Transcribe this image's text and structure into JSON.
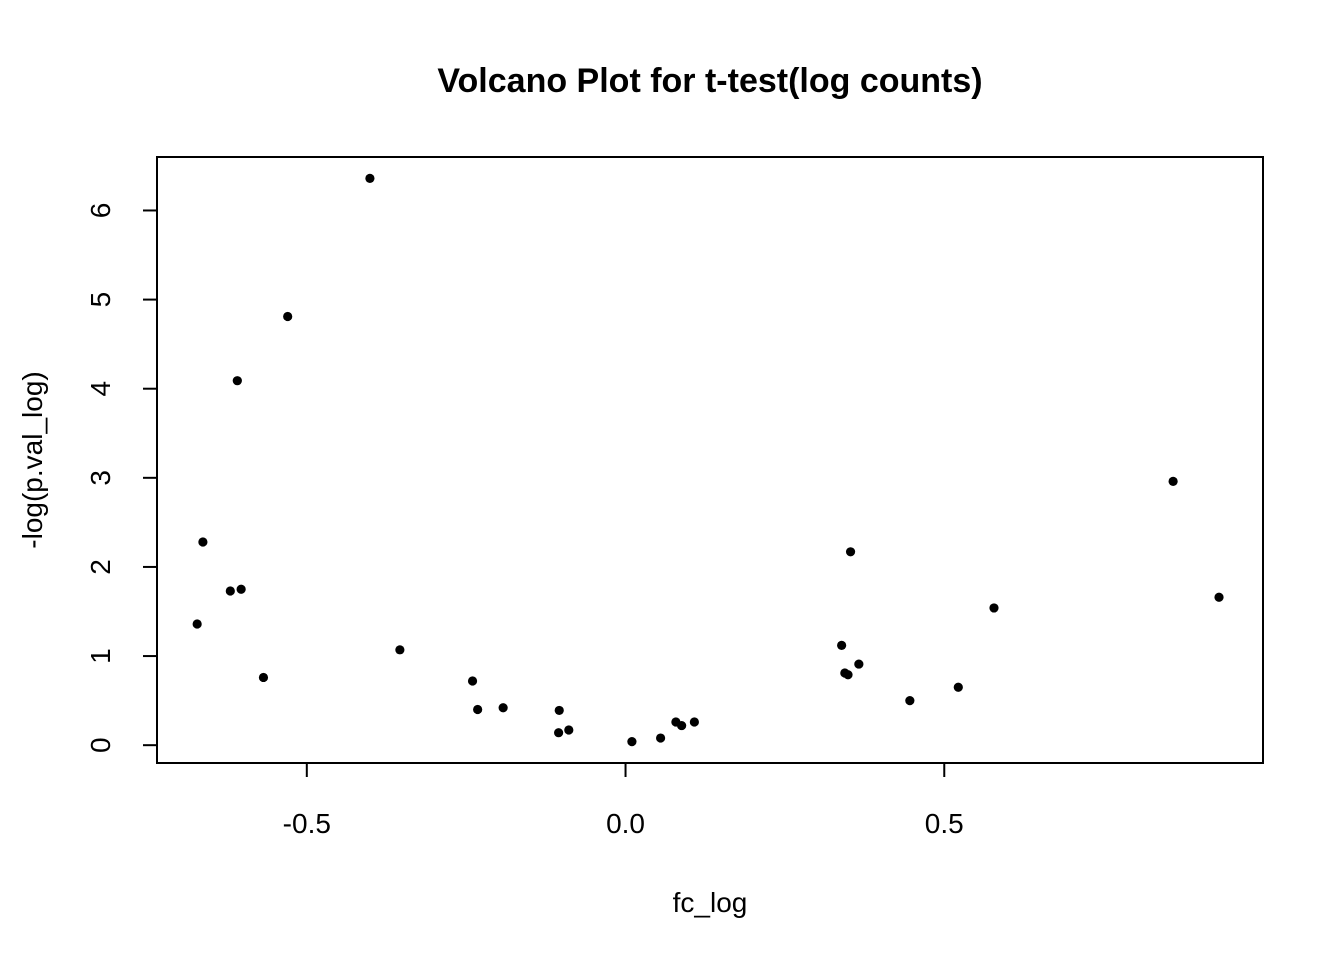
{
  "chart_data": {
    "type": "scatter",
    "title": "Volcano Plot for t-test(log counts)",
    "xlabel": "fc_log",
    "ylabel": "-log(p.val_log)",
    "xlim": [
      -0.735,
      1.0
    ],
    "ylim": [
      -0.2,
      6.6
    ],
    "xticks": [
      -0.5,
      0.0,
      0.5
    ],
    "xtick_labels": [
      "-0.5",
      "0.0",
      "0.5"
    ],
    "yticks": [
      0,
      1,
      2,
      3,
      4,
      5,
      6
    ],
    "ytick_labels": [
      "0",
      "1",
      "2",
      "3",
      "4",
      "5",
      "6"
    ],
    "grid": false,
    "legend": "none",
    "marker_color": "#000000",
    "points": [
      {
        "x": -0.401,
        "y": 6.36
      },
      {
        "x": -0.53,
        "y": 4.81
      },
      {
        "x": -0.609,
        "y": 4.09
      },
      {
        "x": -0.663,
        "y": 2.28
      },
      {
        "x": -0.62,
        "y": 1.73
      },
      {
        "x": -0.603,
        "y": 1.75
      },
      {
        "x": -0.672,
        "y": 1.36
      },
      {
        "x": -0.568,
        "y": 0.76
      },
      {
        "x": -0.354,
        "y": 1.07
      },
      {
        "x": -0.24,
        "y": 0.72
      },
      {
        "x": -0.232,
        "y": 0.4
      },
      {
        "x": -0.192,
        "y": 0.42
      },
      {
        "x": -0.104,
        "y": 0.39
      },
      {
        "x": -0.105,
        "y": 0.14
      },
      {
        "x": -0.089,
        "y": 0.17
      },
      {
        "x": 0.01,
        "y": 0.04
      },
      {
        "x": 0.055,
        "y": 0.08
      },
      {
        "x": 0.079,
        "y": 0.26
      },
      {
        "x": 0.088,
        "y": 0.22
      },
      {
        "x": 0.108,
        "y": 0.26
      },
      {
        "x": 0.339,
        "y": 1.12
      },
      {
        "x": 0.344,
        "y": 0.81
      },
      {
        "x": 0.349,
        "y": 0.79
      },
      {
        "x": 0.353,
        "y": 2.17
      },
      {
        "x": 0.366,
        "y": 0.91
      },
      {
        "x": 0.446,
        "y": 0.5
      },
      {
        "x": 0.522,
        "y": 0.65
      },
      {
        "x": 0.578,
        "y": 1.54
      },
      {
        "x": 0.859,
        "y": 2.96
      },
      {
        "x": 0.931,
        "y": 1.66
      }
    ]
  }
}
